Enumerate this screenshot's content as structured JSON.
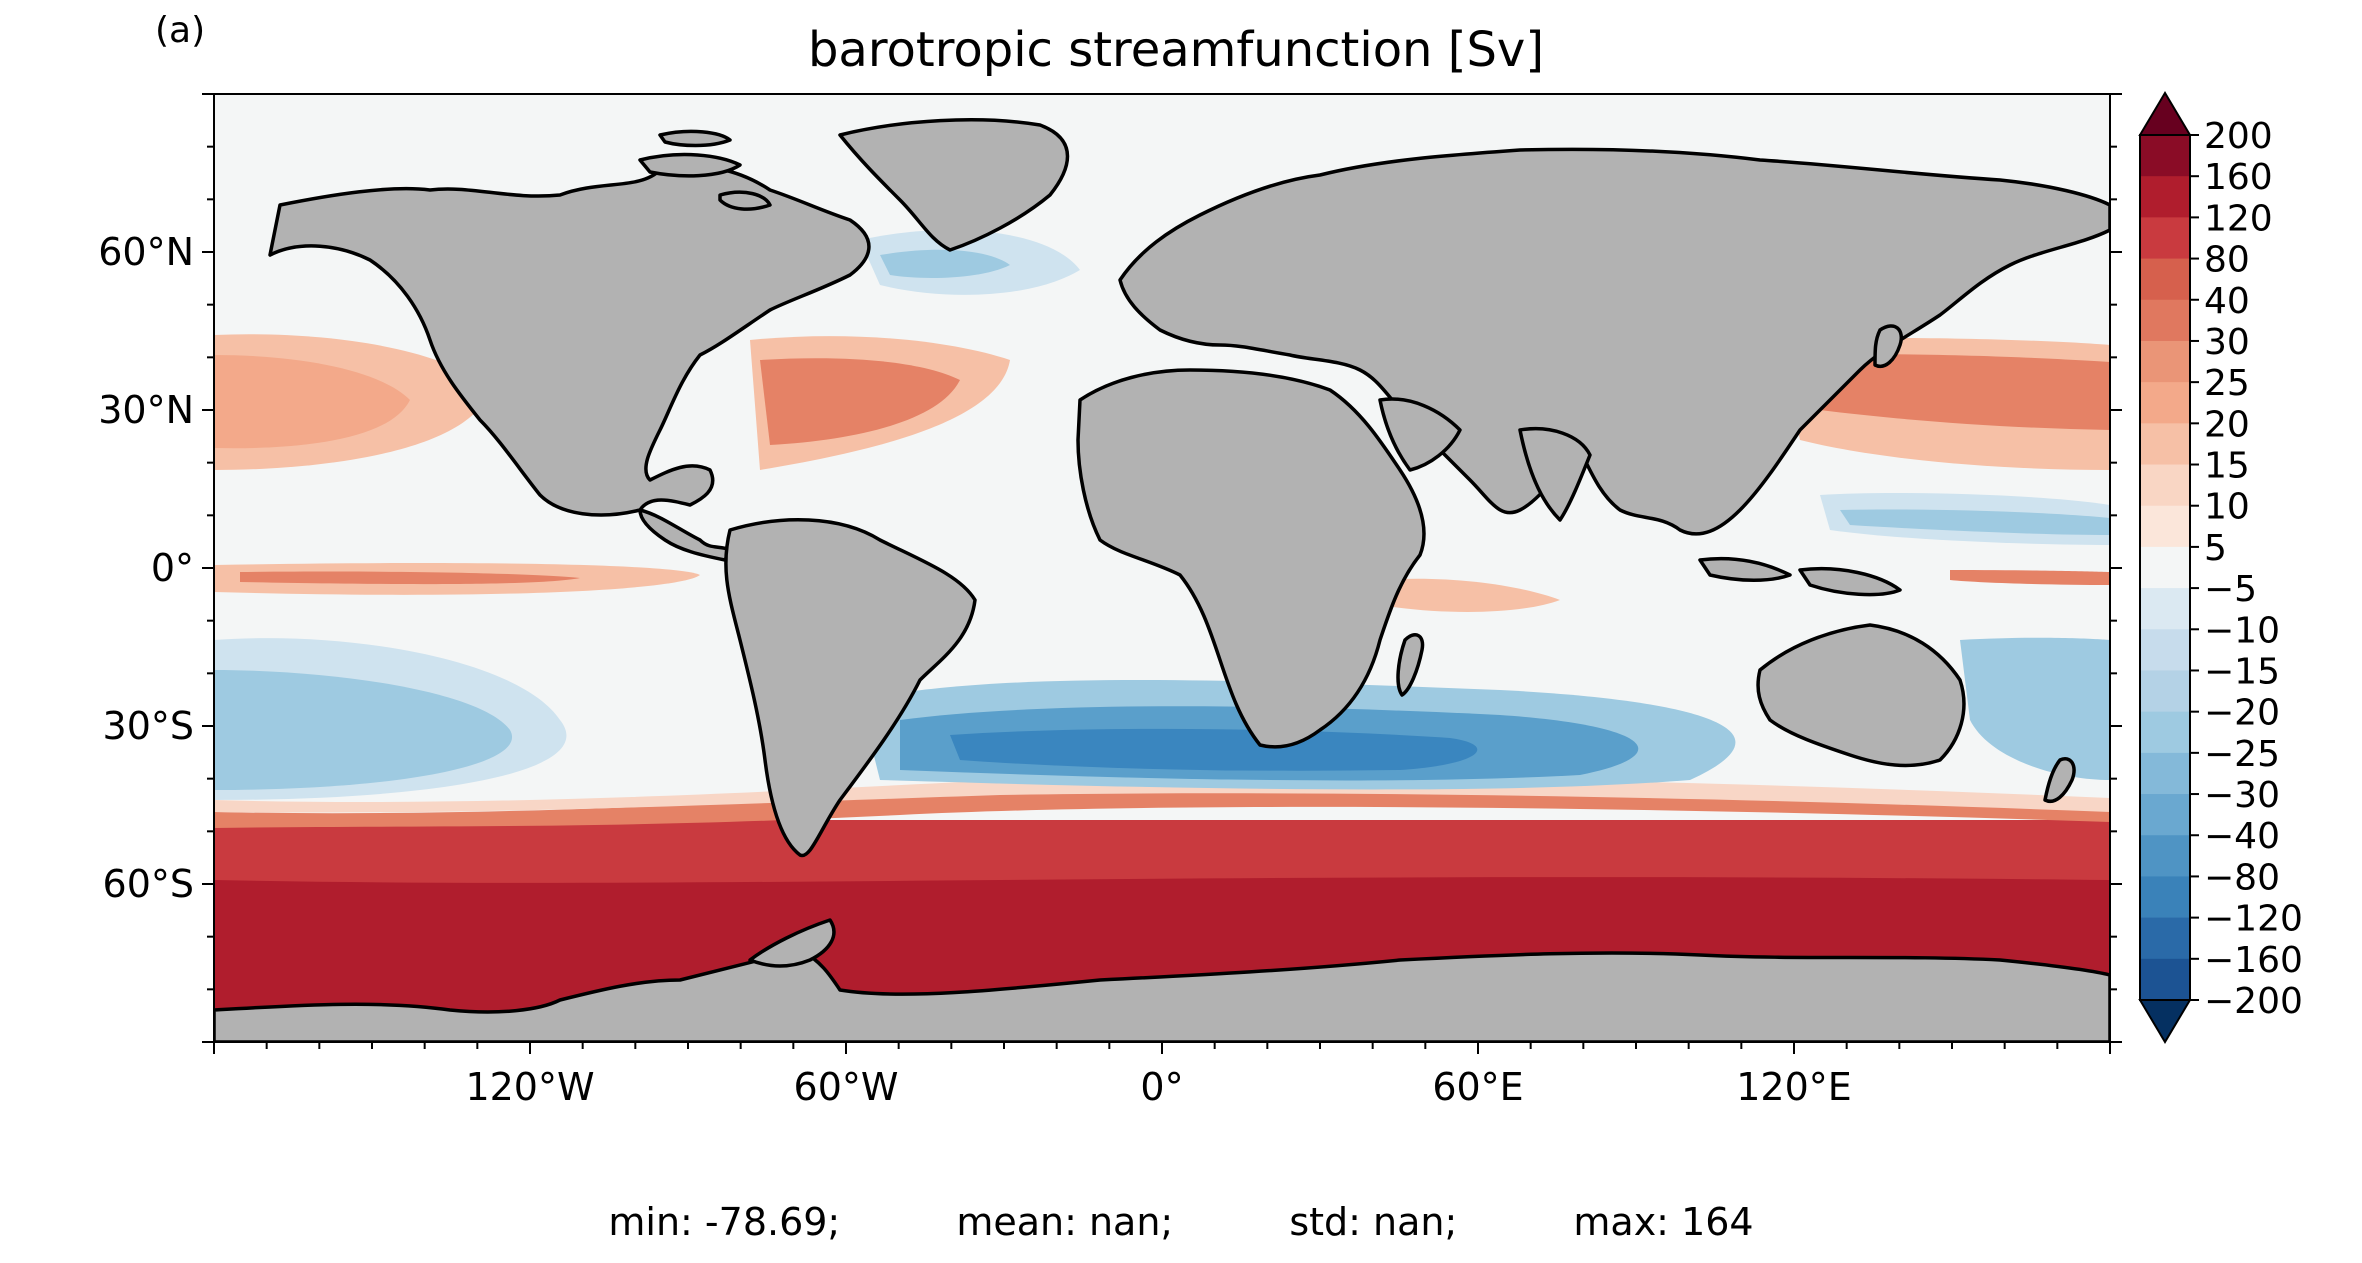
{
  "panel_label": "(a)",
  "title": "barotropic streamfunction [Sv]",
  "axes": {
    "x_ticks": [
      "120°W",
      "60°W",
      "0°",
      "60°E",
      "120°E"
    ],
    "y_ticks": [
      "60°N",
      "30°N",
      "0°",
      "30°S",
      "60°S"
    ],
    "lon_range": [
      -180,
      180
    ],
    "lat_range": [
      -90,
      90
    ]
  },
  "colorbar": {
    "labels": [
      "200",
      "160",
      "120",
      "80",
      "40",
      "30",
      "25",
      "20",
      "15",
      "10",
      "5",
      "−5",
      "−10",
      "−15",
      "−20",
      "−25",
      "−30",
      "−40",
      "−80",
      "−120",
      "−160",
      "−200"
    ],
    "extend": "both",
    "colors": {
      "land": "#b2b2b2",
      "coast": "#000000",
      "zero": "#f4f6f6"
    }
  },
  "stats": {
    "min": "min: -78.69;",
    "mean": "mean: nan;",
    "std": "std: nan;",
    "max": "max: 164"
  }
}
